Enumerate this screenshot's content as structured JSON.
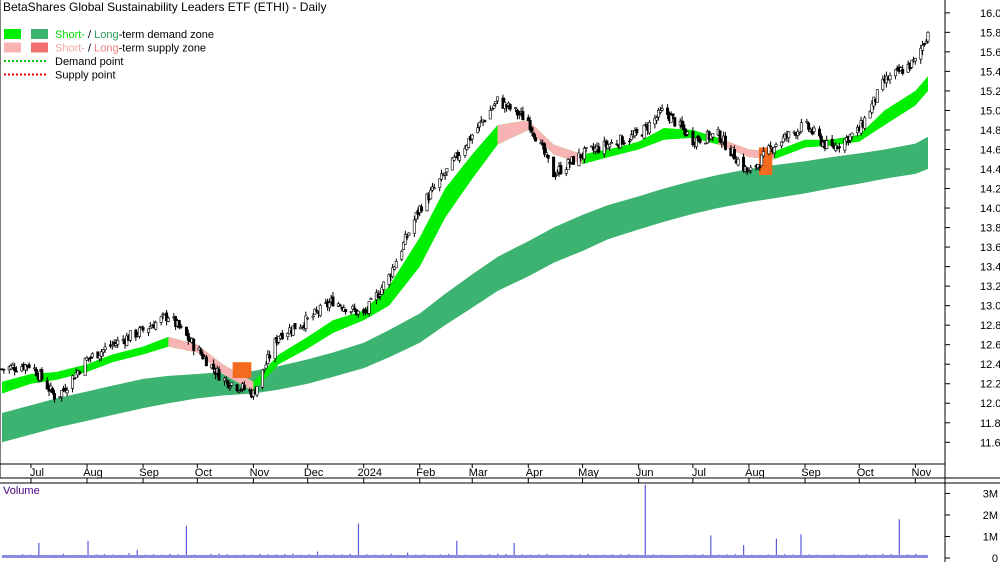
{
  "chart_data": [
    {
      "type": "candlestick",
      "title": "BetaShares Global Sustainability Leaders ETF (ETHI) - Daily",
      "legend": [
        {
          "parts": [
            {
              "text": "Short-",
              "color": "#00dd00"
            },
            {
              "text": " / ",
              "color": "#000000"
            },
            {
              "text": "Long",
              "color": "#2e9e5e"
            },
            {
              "text": "-term demand zone",
              "color": "#000000"
            }
          ],
          "swatches": [
            "#00ee00",
            "#3cb371"
          ]
        },
        {
          "parts": [
            {
              "text": "Short-",
              "color": "#f4a6a6"
            },
            {
              "text": " / ",
              "color": "#000000"
            },
            {
              "text": "Long",
              "color": "#f08080"
            },
            {
              "text": "-term supply zone",
              "color": "#000000"
            }
          ],
          "swatches": [
            "#f8b4b4",
            "#f07070"
          ]
        },
        {
          "parts": [
            {
              "text": "Demand point",
              "color": "#000000"
            }
          ],
          "line": "#00cc00"
        },
        {
          "parts": [
            {
              "text": "Supply point",
              "color": "#000000"
            }
          ],
          "line": "#dd0000"
        }
      ],
      "x_tick_labels": [
        "Jul",
        "Aug",
        "Sep",
        "Oct",
        "Nov",
        "Dec",
        "2024",
        "Feb",
        "Mar",
        "Apr",
        "May",
        "Jun",
        "Jul",
        "Aug",
        "Sep",
        "Oct",
        "Nov"
      ],
      "y_tick_labels": [
        "11.6",
        "11.8",
        "12.0",
        "12.2",
        "12.4",
        "12.6",
        "12.8",
        "13.0",
        "13.2",
        "13.4",
        "13.6",
        "13.8",
        "14.0",
        "14.2",
        "14.4",
        "14.6",
        "14.8",
        "15.0",
        "15.2",
        "15.4",
        "15.6",
        "15.8",
        "16.0"
      ],
      "ylim": [
        11.48,
        16.07
      ],
      "series": [
        {
          "name": "Price",
          "x": [
            "2023-06-15",
            "2023-07-01",
            "2023-07-15",
            "2023-08-01",
            "2023-08-15",
            "2023-09-01",
            "2023-09-15",
            "2023-10-01",
            "2023-10-15",
            "2023-11-01",
            "2023-11-15",
            "2023-12-01",
            "2023-12-15",
            "2024-01-01",
            "2024-01-15",
            "2024-02-01",
            "2024-02-15",
            "2024-03-01",
            "2024-03-15",
            "2024-04-01",
            "2024-04-15",
            "2024-05-01",
            "2024-05-15",
            "2024-06-01",
            "2024-06-15",
            "2024-07-01",
            "2024-07-15",
            "2024-08-01",
            "2024-08-15",
            "2024-09-01",
            "2024-09-15",
            "2024-10-01",
            "2024-10-15",
            "2024-11-01",
            "2024-11-08"
          ],
          "values": [
            12.35,
            12.4,
            12.05,
            12.45,
            12.6,
            12.75,
            12.9,
            12.55,
            12.25,
            12.1,
            12.7,
            12.85,
            13.05,
            12.9,
            13.3,
            14.0,
            14.35,
            14.75,
            15.1,
            14.9,
            14.35,
            14.55,
            14.65,
            14.75,
            15.0,
            14.7,
            14.75,
            14.35,
            14.65,
            14.85,
            14.6,
            14.8,
            15.3,
            15.5,
            15.8
          ]
        },
        {
          "name": "Short-term demand zone upper",
          "values": [
            12.22,
            12.3,
            12.32,
            12.4,
            12.5,
            12.58,
            12.68,
            12.6,
            12.4,
            12.22,
            12.5,
            12.68,
            12.85,
            12.95,
            13.2,
            13.7,
            14.2,
            14.55,
            14.85,
            14.9,
            14.65,
            14.55,
            14.6,
            14.68,
            14.82,
            14.8,
            14.72,
            14.6,
            14.58,
            14.7,
            14.7,
            14.75,
            15.0,
            15.2,
            15.35
          ]
        },
        {
          "name": "Short-term demand zone lower",
          "values": [
            12.1,
            12.2,
            12.24,
            12.32,
            12.42,
            12.5,
            12.58,
            12.52,
            12.3,
            12.12,
            12.4,
            12.56,
            12.72,
            12.85,
            13.0,
            13.4,
            13.9,
            14.3,
            14.65,
            14.8,
            14.55,
            14.45,
            14.52,
            14.6,
            14.7,
            14.72,
            14.65,
            14.52,
            14.5,
            14.62,
            14.64,
            14.68,
            14.85,
            15.05,
            15.2
          ]
        },
        {
          "name": "Long-term demand zone upper",
          "values": [
            11.9,
            11.98,
            12.05,
            12.12,
            12.18,
            12.25,
            12.28,
            12.3,
            12.32,
            12.33,
            12.38,
            12.45,
            12.52,
            12.62,
            12.75,
            12.92,
            13.12,
            13.32,
            13.5,
            13.66,
            13.8,
            13.93,
            14.03,
            14.12,
            14.2,
            14.28,
            14.34,
            14.4,
            14.44,
            14.48,
            14.52,
            14.56,
            14.6,
            14.66,
            14.73
          ]
        },
        {
          "name": "Long-term demand zone lower",
          "values": [
            11.6,
            11.68,
            11.75,
            11.82,
            11.88,
            11.95,
            12.0,
            12.05,
            12.08,
            12.1,
            12.14,
            12.2,
            12.27,
            12.36,
            12.47,
            12.62,
            12.8,
            12.98,
            13.15,
            13.3,
            13.44,
            13.56,
            13.68,
            13.78,
            13.86,
            13.94,
            14.0,
            14.06,
            14.1,
            14.15,
            14.2,
            14.25,
            14.3,
            14.35,
            14.4
          ]
        }
      ]
    },
    {
      "type": "bar",
      "title": "Volume",
      "y_tick_labels": [
        "3M",
        "2M",
        "1M",
        "0"
      ],
      "ylim": [
        0,
        3300000
      ],
      "values": [
        150000,
        120000,
        180000,
        160000,
        700000,
        140000,
        150000,
        200000,
        130000,
        120000,
        800000,
        170000,
        180000,
        160000,
        150000,
        230000,
        380000,
        160000,
        180000,
        160000,
        200000,
        180000,
        1500000,
        160000,
        150000,
        200000,
        210000,
        180000,
        150000,
        170000,
        160000,
        190000,
        180000,
        170000,
        190000,
        210000,
        160000,
        180000,
        300000,
        160000,
        180000,
        170000,
        190000,
        1600000,
        180000,
        160000,
        170000,
        200000,
        150000,
        250000,
        160000,
        180000,
        150000,
        170000,
        190000,
        800000,
        160000,
        150000,
        170000,
        180000,
        210000,
        190000,
        700000,
        170000,
        160000,
        180000,
        200000,
        150000,
        160000,
        170000,
        180000,
        190000,
        150000,
        160000,
        170000,
        180000,
        190000,
        160000,
        3400000,
        170000,
        160000,
        150000,
        140000,
        160000,
        170000,
        180000,
        1050000,
        160000,
        170000,
        180000,
        600000,
        160000,
        150000,
        170000,
        900000,
        180000,
        160000,
        1100000,
        170000,
        160000,
        150000,
        180000,
        160000,
        150000,
        170000,
        180000,
        160000,
        200000,
        190000,
        1800000,
        170000,
        200000,
        150000
      ]
    }
  ]
}
